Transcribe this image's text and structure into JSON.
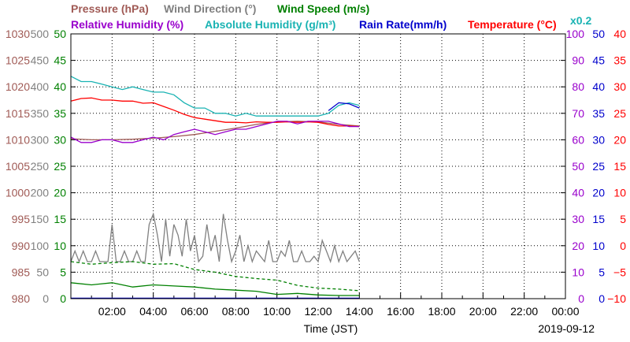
{
  "chart_data": {
    "type": "line",
    "date": "2019-09-12",
    "xlabel": "Time (JST)",
    "x_ticks": [
      "02:00",
      "04:00",
      "06:00",
      "08:00",
      "10:00",
      "12:00",
      "14:00",
      "16:00",
      "18:00",
      "20:00",
      "22:00",
      "00:00"
    ],
    "xlim_hours": [
      0,
      24
    ],
    "grid": true,
    "legend_row1": [
      {
        "name": "Pressure (hPa)",
        "color": "#a05a55"
      },
      {
        "name": "Wind Direction (°)",
        "color": "#808080"
      },
      {
        "name": "Wind Speed (m/s)",
        "color": "#008000"
      }
    ],
    "legend_row2": [
      {
        "name": "Relative Humidity (%)",
        "color": "#9900cc"
      },
      {
        "name": "Absolute Humidity (g/m³)",
        "color": "#1ab3b3"
      },
      {
        "name": "Rain Rate(mm/h)",
        "color": "#0000cc"
      },
      {
        "name": "Temperature (°C)",
        "color": "#ff0000"
      }
    ],
    "multiplier_note": "x0.2",
    "axes": {
      "pressure": {
        "ticks": [
          "1030",
          "1025",
          "1020",
          "1015",
          "1010",
          "1005",
          "1000",
          "995",
          "990",
          "985",
          "980"
        ],
        "range": [
          980,
          1030
        ],
        "color": "#a05a55"
      },
      "wind_dir": {
        "ticks": [
          "500",
          "450",
          "400",
          "350",
          "300",
          "250",
          "200",
          "150",
          "100",
          "50",
          "0"
        ],
        "range": [
          0,
          500
        ],
        "color": "#808080"
      },
      "wind_speed": {
        "ticks": [
          "50",
          "45",
          "40",
          "35",
          "30",
          "25",
          "20",
          "15",
          "10",
          "5",
          "0"
        ],
        "range": [
          0,
          50
        ],
        "color": "#008000"
      },
      "humidity": {
        "ticks": [
          "100",
          "90",
          "80",
          "70",
          "60",
          "50",
          "40",
          "30",
          "20",
          "10",
          "0"
        ],
        "range": [
          0,
          100
        ],
        "color": "#9900cc"
      },
      "rain": {
        "ticks": [
          "50",
          "45",
          "40",
          "35",
          "30",
          "25",
          "20",
          "15",
          "10",
          "5",
          "0"
        ],
        "range": [
          0,
          50
        ],
        "color": "#0000cc"
      },
      "temperature": {
        "ticks": [
          "40",
          "35",
          "30",
          "25",
          "20",
          "15",
          "10",
          "5",
          "0",
          "−5",
          "−10"
        ],
        "range": [
          -10,
          40
        ],
        "color": "#ff0000"
      }
    },
    "series": [
      {
        "name": "Pressure (hPa)",
        "key": "pressure",
        "color": "#a05a55",
        "x": [
          0,
          1,
          2,
          3,
          4,
          5,
          6,
          7,
          8,
          9,
          10,
          11,
          12,
          13,
          14
        ],
        "y": [
          1010.2,
          1010.0,
          1010.0,
          1010.1,
          1010.3,
          1010.6,
          1011.0,
          1011.6,
          1012.2,
          1012.9,
          1013.4,
          1013.5,
          1013.4,
          1012.9,
          1012.6
        ]
      },
      {
        "name": "Temperature (°C)",
        "key": "temperature",
        "color": "#ff0000",
        "x": [
          0,
          0.5,
          1,
          1.5,
          2,
          2.5,
          3,
          3.5,
          4,
          4.5,
          5,
          5.5,
          6,
          6.5,
          7,
          7.5,
          8,
          8.5,
          9,
          9.5,
          10,
          10.5,
          11,
          11.5,
          12,
          12.5,
          13,
          13.5,
          14
        ],
        "y": [
          27.3,
          27.8,
          27.9,
          27.5,
          27.5,
          27.3,
          27.3,
          26.9,
          27.0,
          26.3,
          25.6,
          24.8,
          24.2,
          23.9,
          23.6,
          23.3,
          23.3,
          23.2,
          23.4,
          23.3,
          23.3,
          23.4,
          23.3,
          23.4,
          23.3,
          22.9,
          22.6,
          22.6,
          22.5
        ]
      },
      {
        "name": "Absolute Humidity (g/m³)",
        "key": "humidity",
        "color": "#1ab3b3",
        "x": [
          0,
          0.5,
          1,
          1.5,
          2,
          2.5,
          3,
          3.5,
          4,
          4.5,
          5,
          5.5,
          6,
          6.5,
          7,
          7.5,
          8,
          8.5,
          9,
          9.5,
          10,
          10.5,
          11,
          11.5,
          12,
          12.5,
          13,
          13.5,
          14
        ],
        "y": [
          84,
          82,
          82,
          81,
          80,
          79,
          80,
          79,
          78,
          78,
          77,
          74,
          72,
          72,
          70,
          70,
          69,
          70,
          69,
          69,
          69,
          69,
          69,
          69,
          69,
          70,
          73,
          74,
          73
        ]
      },
      {
        "name": "Rain Rate(mm/h)",
        "key": "rain",
        "color": "#0000cc",
        "x": [
          12.5,
          13,
          13.5,
          14
        ],
        "y": [
          35.5,
          37.0,
          36.8,
          36.0
        ]
      },
      {
        "name": "Relative Humidity (%)",
        "key": "humidity",
        "color": "#9900cc",
        "x": [
          0,
          0.5,
          1,
          1.5,
          2,
          2.5,
          3,
          3.5,
          4,
          4.5,
          5,
          5.5,
          6,
          6.5,
          7,
          7.5,
          8,
          8.5,
          9,
          9.5,
          10,
          10.5,
          11,
          11.5,
          12,
          12.5,
          13,
          13.5,
          14
        ],
        "y": [
          61,
          59,
          59,
          60,
          60,
          59,
          59,
          60,
          61,
          60,
          62,
          63,
          64,
          63,
          62,
          63,
          64,
          64,
          65,
          66,
          67,
          67,
          66,
          67,
          67,
          67,
          66,
          65,
          65
        ]
      },
      {
        "name": "Wind Direction (°)",
        "key": "wind_dir",
        "color": "#808080",
        "x": [
          0,
          0.2,
          0.4,
          0.6,
          0.8,
          1,
          1.2,
          1.4,
          1.6,
          1.8,
          2,
          2.2,
          2.4,
          2.6,
          2.8,
          3,
          3.2,
          3.4,
          3.6,
          3.8,
          4,
          4.2,
          4.4,
          4.6,
          4.8,
          5,
          5.2,
          5.4,
          5.6,
          5.8,
          6,
          6.2,
          6.4,
          6.6,
          6.8,
          7,
          7.2,
          7.4,
          7.6,
          7.8,
          8,
          8.2,
          8.4,
          8.6,
          8.8,
          9,
          9.2,
          9.4,
          9.6,
          9.8,
          10,
          10.2,
          10.4,
          10.6,
          10.8,
          11,
          11.2,
          11.4,
          11.6,
          11.8,
          12,
          12.2,
          12.4,
          12.6,
          12.8,
          13,
          13.2,
          13.4,
          13.6,
          13.8,
          14
        ],
        "y": [
          70,
          90,
          70,
          90,
          70,
          70,
          90,
          70,
          70,
          70,
          140,
          70,
          70,
          90,
          70,
          70,
          90,
          70,
          70,
          140,
          160,
          120,
          70,
          150,
          80,
          140,
          120,
          80,
          150,
          90,
          120,
          70,
          80,
          140,
          90,
          120,
          70,
          160,
          110,
          70,
          90,
          120,
          70,
          100,
          70,
          90,
          80,
          70,
          110,
          70,
          70,
          90,
          80,
          110,
          70,
          70,
          90,
          70,
          70,
          80,
          70,
          110,
          90,
          70,
          100,
          70,
          90,
          70,
          80,
          90,
          70
        ]
      },
      {
        "name": "Wind Speed (m/s) avg",
        "key": "wind_speed",
        "color": "#008000",
        "dashed": false,
        "x": [
          0,
          1,
          2,
          3,
          4,
          5,
          6,
          7,
          8,
          9,
          10,
          11,
          12,
          13,
          14
        ],
        "y": [
          3.0,
          2.6,
          3.0,
          2.2,
          2.6,
          2.4,
          2.2,
          1.8,
          1.6,
          1.4,
          0.8,
          1.0,
          0.7,
          0.6,
          0.6
        ]
      },
      {
        "name": "Wind Speed (m/s) max",
        "key": "wind_speed",
        "color": "#008000",
        "dashed": true,
        "x": [
          0,
          1,
          2,
          3,
          4,
          5,
          6,
          7,
          8,
          9,
          10,
          11,
          12,
          13,
          14
        ],
        "y": [
          7.0,
          6.5,
          6.8,
          7.0,
          6.5,
          6.6,
          5.5,
          5.0,
          4.2,
          3.8,
          3.5,
          2.5,
          2.0,
          1.8,
          1.5
        ]
      }
    ]
  }
}
